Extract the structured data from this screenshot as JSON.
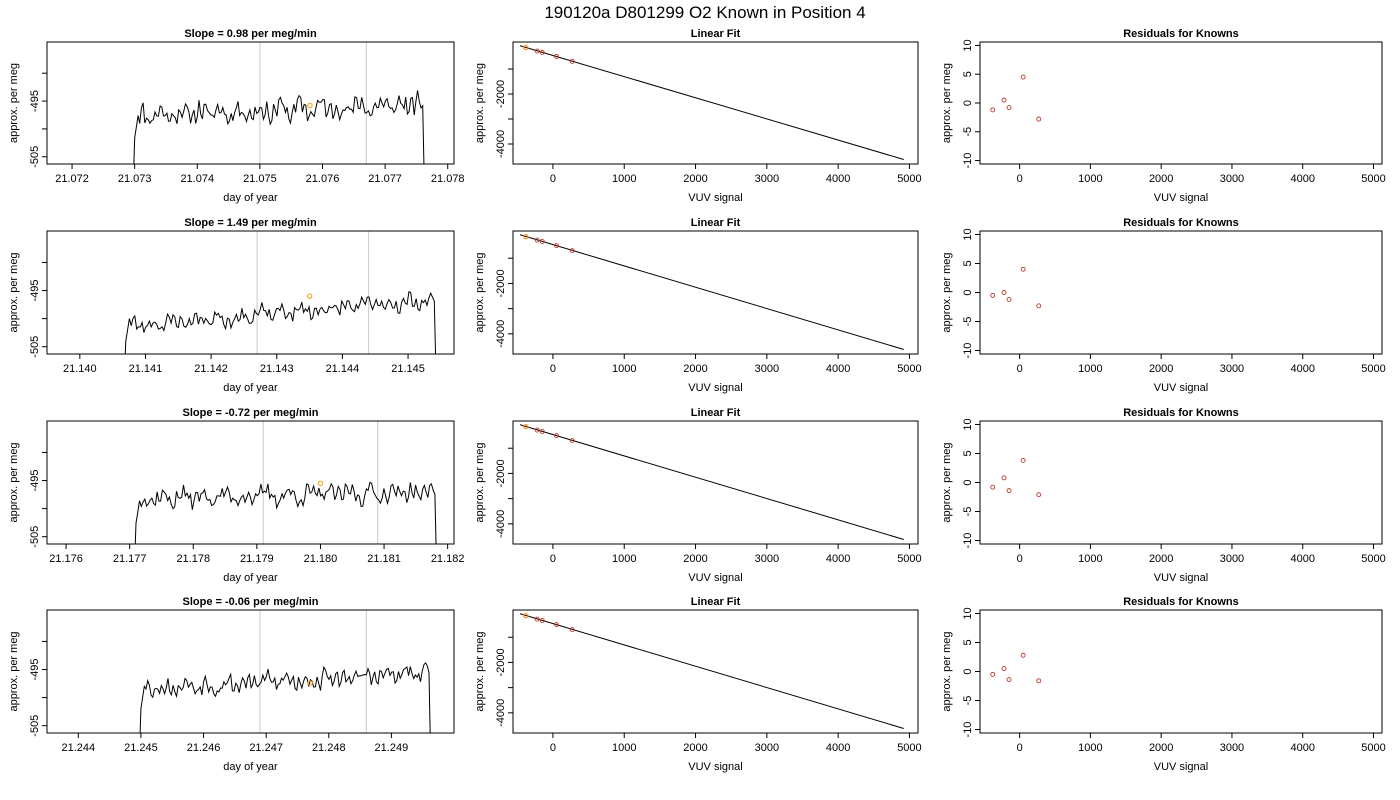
{
  "figure": {
    "title": "190120a     D801299   O2 Known in Position  4"
  },
  "colors": {
    "series_line": "#000000",
    "point_outline": "#c0392b",
    "highlight_point": "#f5a623",
    "marker_line": "#c8c8c8"
  },
  "chart_data": [
    {
      "id": "r1-time",
      "type": "line",
      "title": "Slope =  0.98  per meg/min",
      "xlabel": "day of year",
      "ylabel": "approx. per meg",
      "xlim": [
        21.0716,
        21.0781
      ],
      "ylim": [
        -506.3,
        -484.4
      ],
      "x_ticks": [
        "21.072",
        "21.073",
        "21.074",
        "21.075",
        "21.076",
        "21.077",
        "21.078"
      ],
      "x_tick_values": [
        21.072,
        21.073,
        21.074,
        21.075,
        21.076,
        21.077,
        21.078
      ],
      "y_ticks": [
        "-505",
        "-495"
      ],
      "y_tick_values": [
        -505,
        -495
      ],
      "y_minor": [
        -490,
        -500
      ],
      "marker_lines": [
        21.075,
        21.0767
      ],
      "trace": {
        "start": 21.073,
        "end": 21.0776,
        "base": -496.6,
        "amp": 2.2,
        "trend": 1.8,
        "seed": 11
      },
      "highlight": {
        "x": 21.0758,
        "y": -495.8
      }
    },
    {
      "id": "r1-fit",
      "type": "line",
      "title": "Linear Fit",
      "xlabel": "VUV signal",
      "ylabel": "approx. per meg",
      "xlim": [
        -560,
        5120
      ],
      "ylim": [
        -4800,
        80
      ],
      "x_ticks": [
        "0",
        "1000",
        "2000",
        "3000",
        "4000",
        "5000"
      ],
      "x_tick_values": [
        0,
        1000,
        2000,
        3000,
        4000,
        5000
      ],
      "y_ticks": [
        "-2000",
        "-4000"
      ],
      "y_tick_values": [
        -2000,
        -4000
      ],
      "y_minor": [
        -1000,
        -3000
      ],
      "fit_line": {
        "x": [
          -460,
          4920
        ],
        "y": [
          -70,
          -4620
        ]
      },
      "points": [
        {
          "x": -380,
          "y": -142
        },
        {
          "x": -220,
          "y": -281
        },
        {
          "x": -150,
          "y": -335
        },
        {
          "x": 50,
          "y": -500
        },
        {
          "x": 270,
          "y": -696
        }
      ],
      "highlight": {
        "x": -380,
        "y": -142
      }
    },
    {
      "id": "r1-resid",
      "type": "scatter",
      "title": "Residuals for Knowns",
      "xlabel": "VUV signal",
      "ylabel": "approx. per meg",
      "xlim": [
        -560,
        5120
      ],
      "ylim": [
        -10.6,
        10.6
      ],
      "x_ticks": [
        "0",
        "1000",
        "2000",
        "3000",
        "4000",
        "5000"
      ],
      "x_tick_values": [
        0,
        1000,
        2000,
        3000,
        4000,
        5000
      ],
      "y_ticks": [
        "-10",
        "-5",
        "0",
        "5",
        "10"
      ],
      "y_tick_values": [
        -10,
        -5,
        0,
        5,
        10
      ],
      "points": [
        {
          "x": -380,
          "y": -1.2
        },
        {
          "x": -220,
          "y": 0.5
        },
        {
          "x": -150,
          "y": -0.8
        },
        {
          "x": 50,
          "y": 4.5
        },
        {
          "x": 270,
          "y": -2.8
        }
      ]
    },
    {
      "id": "r2-time",
      "type": "line",
      "title": "Slope =  1.49  per meg/min",
      "xlabel": "day of year",
      "ylabel": "approx. per meg",
      "xlim": [
        21.1395,
        21.1457
      ],
      "ylim": [
        -506.3,
        -484.4
      ],
      "x_ticks": [
        "21.140",
        "21.141",
        "21.142",
        "21.143",
        "21.144",
        "21.145"
      ],
      "x_tick_values": [
        21.14,
        21.141,
        21.142,
        21.143,
        21.144,
        21.145
      ],
      "y_ticks": [
        "-505",
        "-495"
      ],
      "y_tick_values": [
        -505,
        -495
      ],
      "y_minor": [
        -490,
        -500
      ],
      "marker_lines": [
        21.1427,
        21.1444
      ],
      "trace": {
        "start": 21.1407,
        "end": 21.1454,
        "base": -499.0,
        "amp": 1.6,
        "trend": 4.6,
        "seed": 23
      },
      "highlight": {
        "x": 21.1435,
        "y": -496.0
      }
    },
    {
      "id": "r2-fit",
      "type": "line",
      "title": "Linear Fit",
      "xlabel": "VUV signal",
      "ylabel": "approx. per meg",
      "xlim": [
        -560,
        5120
      ],
      "ylim": [
        -4800,
        80
      ],
      "x_ticks": [
        "0",
        "1000",
        "2000",
        "3000",
        "4000",
        "5000"
      ],
      "x_tick_values": [
        0,
        1000,
        2000,
        3000,
        4000,
        5000
      ],
      "y_ticks": [
        "-2000",
        "-4000"
      ],
      "y_tick_values": [
        -2000,
        -4000
      ],
      "y_minor": [
        -1000,
        -3000
      ],
      "fit_line": {
        "x": [
          -460,
          4920
        ],
        "y": [
          -70,
          -4620
        ]
      },
      "points": [
        {
          "x": -380,
          "y": -142
        },
        {
          "x": -220,
          "y": -281
        },
        {
          "x": -150,
          "y": -335
        },
        {
          "x": 50,
          "y": -500
        },
        {
          "x": 270,
          "y": -696
        }
      ],
      "highlight": {
        "x": -380,
        "y": -142
      }
    },
    {
      "id": "r2-resid",
      "type": "scatter",
      "title": "Residuals for Knowns",
      "xlabel": "VUV signal",
      "ylabel": "approx. per meg",
      "xlim": [
        -560,
        5120
      ],
      "ylim": [
        -10.6,
        10.6
      ],
      "x_ticks": [
        "0",
        "1000",
        "2000",
        "3000",
        "4000",
        "5000"
      ],
      "x_tick_values": [
        0,
        1000,
        2000,
        3000,
        4000,
        5000
      ],
      "y_ticks": [
        "-10",
        "-5",
        "0",
        "5",
        "10"
      ],
      "y_tick_values": [
        -10,
        -5,
        0,
        5,
        10
      ],
      "points": [
        {
          "x": -380,
          "y": -0.5
        },
        {
          "x": -220,
          "y": 0.0
        },
        {
          "x": -150,
          "y": -1.2
        },
        {
          "x": 50,
          "y": 4.0
        },
        {
          "x": 270,
          "y": -2.3
        }
      ]
    },
    {
      "id": "r3-time",
      "type": "line",
      "title": "Slope =  -0.72  per meg/min",
      "xlabel": "day of year",
      "ylabel": "approx. per meg",
      "xlim": [
        21.1757,
        21.1821
      ],
      "ylim": [
        -506.3,
        -484.4
      ],
      "x_ticks": [
        "21.176",
        "21.177",
        "21.178",
        "21.179",
        "21.180",
        "21.181",
        "21.182"
      ],
      "x_tick_values": [
        21.176,
        21.177,
        21.178,
        21.179,
        21.18,
        21.181,
        21.182
      ],
      "y_ticks": [
        "-505",
        "-495"
      ],
      "y_tick_values": [
        -505,
        -495
      ],
      "y_minor": [
        -490,
        -500
      ],
      "marker_lines": [
        21.1791,
        21.1809
      ],
      "trace": {
        "start": 21.1771,
        "end": 21.1818,
        "base": -497.6,
        "amp": 1.8,
        "trend": 1.2,
        "seed": 37
      },
      "highlight": {
        "x": 21.18,
        "y": -495.5
      }
    },
    {
      "id": "r3-fit",
      "type": "line",
      "title": "Linear Fit",
      "xlabel": "VUV signal",
      "ylabel": "approx. per meg",
      "xlim": [
        -560,
        5120
      ],
      "ylim": [
        -4800,
        80
      ],
      "x_ticks": [
        "0",
        "1000",
        "2000",
        "3000",
        "4000",
        "5000"
      ],
      "x_tick_values": [
        0,
        1000,
        2000,
        3000,
        4000,
        5000
      ],
      "y_ticks": [
        "-2000",
        "-4000"
      ],
      "y_tick_values": [
        -2000,
        -4000
      ],
      "y_minor": [
        -1000,
        -3000
      ],
      "fit_line": {
        "x": [
          -460,
          4920
        ],
        "y": [
          -70,
          -4620
        ]
      },
      "points": [
        {
          "x": -380,
          "y": -142
        },
        {
          "x": -220,
          "y": -281
        },
        {
          "x": -150,
          "y": -335
        },
        {
          "x": 50,
          "y": -500
        },
        {
          "x": 270,
          "y": -696
        }
      ],
      "highlight": {
        "x": -380,
        "y": -142
      }
    },
    {
      "id": "r3-resid",
      "type": "scatter",
      "title": "Residuals for Knowns",
      "xlabel": "VUV signal",
      "ylabel": "approx. per meg",
      "xlim": [
        -560,
        5120
      ],
      "ylim": [
        -10.6,
        10.6
      ],
      "x_ticks": [
        "0",
        "1000",
        "2000",
        "3000",
        "4000",
        "5000"
      ],
      "x_tick_values": [
        0,
        1000,
        2000,
        3000,
        4000,
        5000
      ],
      "y_ticks": [
        "-10",
        "-5",
        "0",
        "5",
        "10"
      ],
      "y_tick_values": [
        -10,
        -5,
        0,
        5,
        10
      ],
      "points": [
        {
          "x": -380,
          "y": -0.8
        },
        {
          "x": -220,
          "y": 0.8
        },
        {
          "x": -150,
          "y": -1.4
        },
        {
          "x": 50,
          "y": 3.8
        },
        {
          "x": 270,
          "y": -2.1
        }
      ]
    },
    {
      "id": "r4-time",
      "type": "line",
      "title": "Slope =  -0.06  per meg/min",
      "xlabel": "day of year",
      "ylabel": "approx. per meg",
      "xlim": [
        21.2435,
        21.25
      ],
      "ylim": [
        -506.3,
        -484.4
      ],
      "x_ticks": [
        "21.244",
        "21.245",
        "21.246",
        "21.247",
        "21.248",
        "21.249"
      ],
      "x_tick_values": [
        21.244,
        21.245,
        21.246,
        21.247,
        21.248,
        21.249
      ],
      "y_ticks": [
        "-505",
        "-495"
      ],
      "y_tick_values": [
        -505,
        -495
      ],
      "y_minor": [
        -490,
        -500
      ],
      "marker_lines": [
        21.2469,
        21.2486
      ],
      "trace": {
        "start": 21.245,
        "end": 21.2496,
        "base": -497.0,
        "amp": 1.7,
        "trend": 2.6,
        "seed": 53
      },
      "highlight": {
        "x": 21.2477,
        "y": -497.4
      }
    },
    {
      "id": "r4-fit",
      "type": "line",
      "title": "Linear Fit",
      "xlabel": "VUV signal",
      "ylabel": "approx. per meg",
      "xlim": [
        -560,
        5120
      ],
      "ylim": [
        -4800,
        80
      ],
      "x_ticks": [
        "0",
        "1000",
        "2000",
        "3000",
        "4000",
        "5000"
      ],
      "x_tick_values": [
        0,
        1000,
        2000,
        3000,
        4000,
        5000
      ],
      "y_ticks": [
        "-2000",
        "-4000"
      ],
      "y_tick_values": [
        -2000,
        -4000
      ],
      "y_minor": [
        -1000,
        -3000
      ],
      "fit_line": {
        "x": [
          -460,
          4920
        ],
        "y": [
          -70,
          -4620
        ]
      },
      "points": [
        {
          "x": -380,
          "y": -142
        },
        {
          "x": -220,
          "y": -281
        },
        {
          "x": -150,
          "y": -335
        },
        {
          "x": 50,
          "y": -500
        },
        {
          "x": 270,
          "y": -696
        }
      ],
      "highlight": {
        "x": -380,
        "y": -142
      }
    },
    {
      "id": "r4-resid",
      "type": "scatter",
      "title": "Residuals for Knowns",
      "xlabel": "VUV signal",
      "ylabel": "approx. per meg",
      "xlim": [
        -560,
        5120
      ],
      "ylim": [
        -10.6,
        10.6
      ],
      "x_ticks": [
        "0",
        "1000",
        "2000",
        "3000",
        "4000",
        "5000"
      ],
      "x_tick_values": [
        0,
        1000,
        2000,
        3000,
        4000,
        5000
      ],
      "y_ticks": [
        "-10",
        "-5",
        "0",
        "5",
        "10"
      ],
      "y_tick_values": [
        -10,
        -5,
        0,
        5,
        10
      ],
      "points": [
        {
          "x": -380,
          "y": -0.5
        },
        {
          "x": -220,
          "y": 0.5
        },
        {
          "x": -150,
          "y": -1.4
        },
        {
          "x": 50,
          "y": 2.8
        },
        {
          "x": 270,
          "y": -1.6
        }
      ]
    }
  ]
}
